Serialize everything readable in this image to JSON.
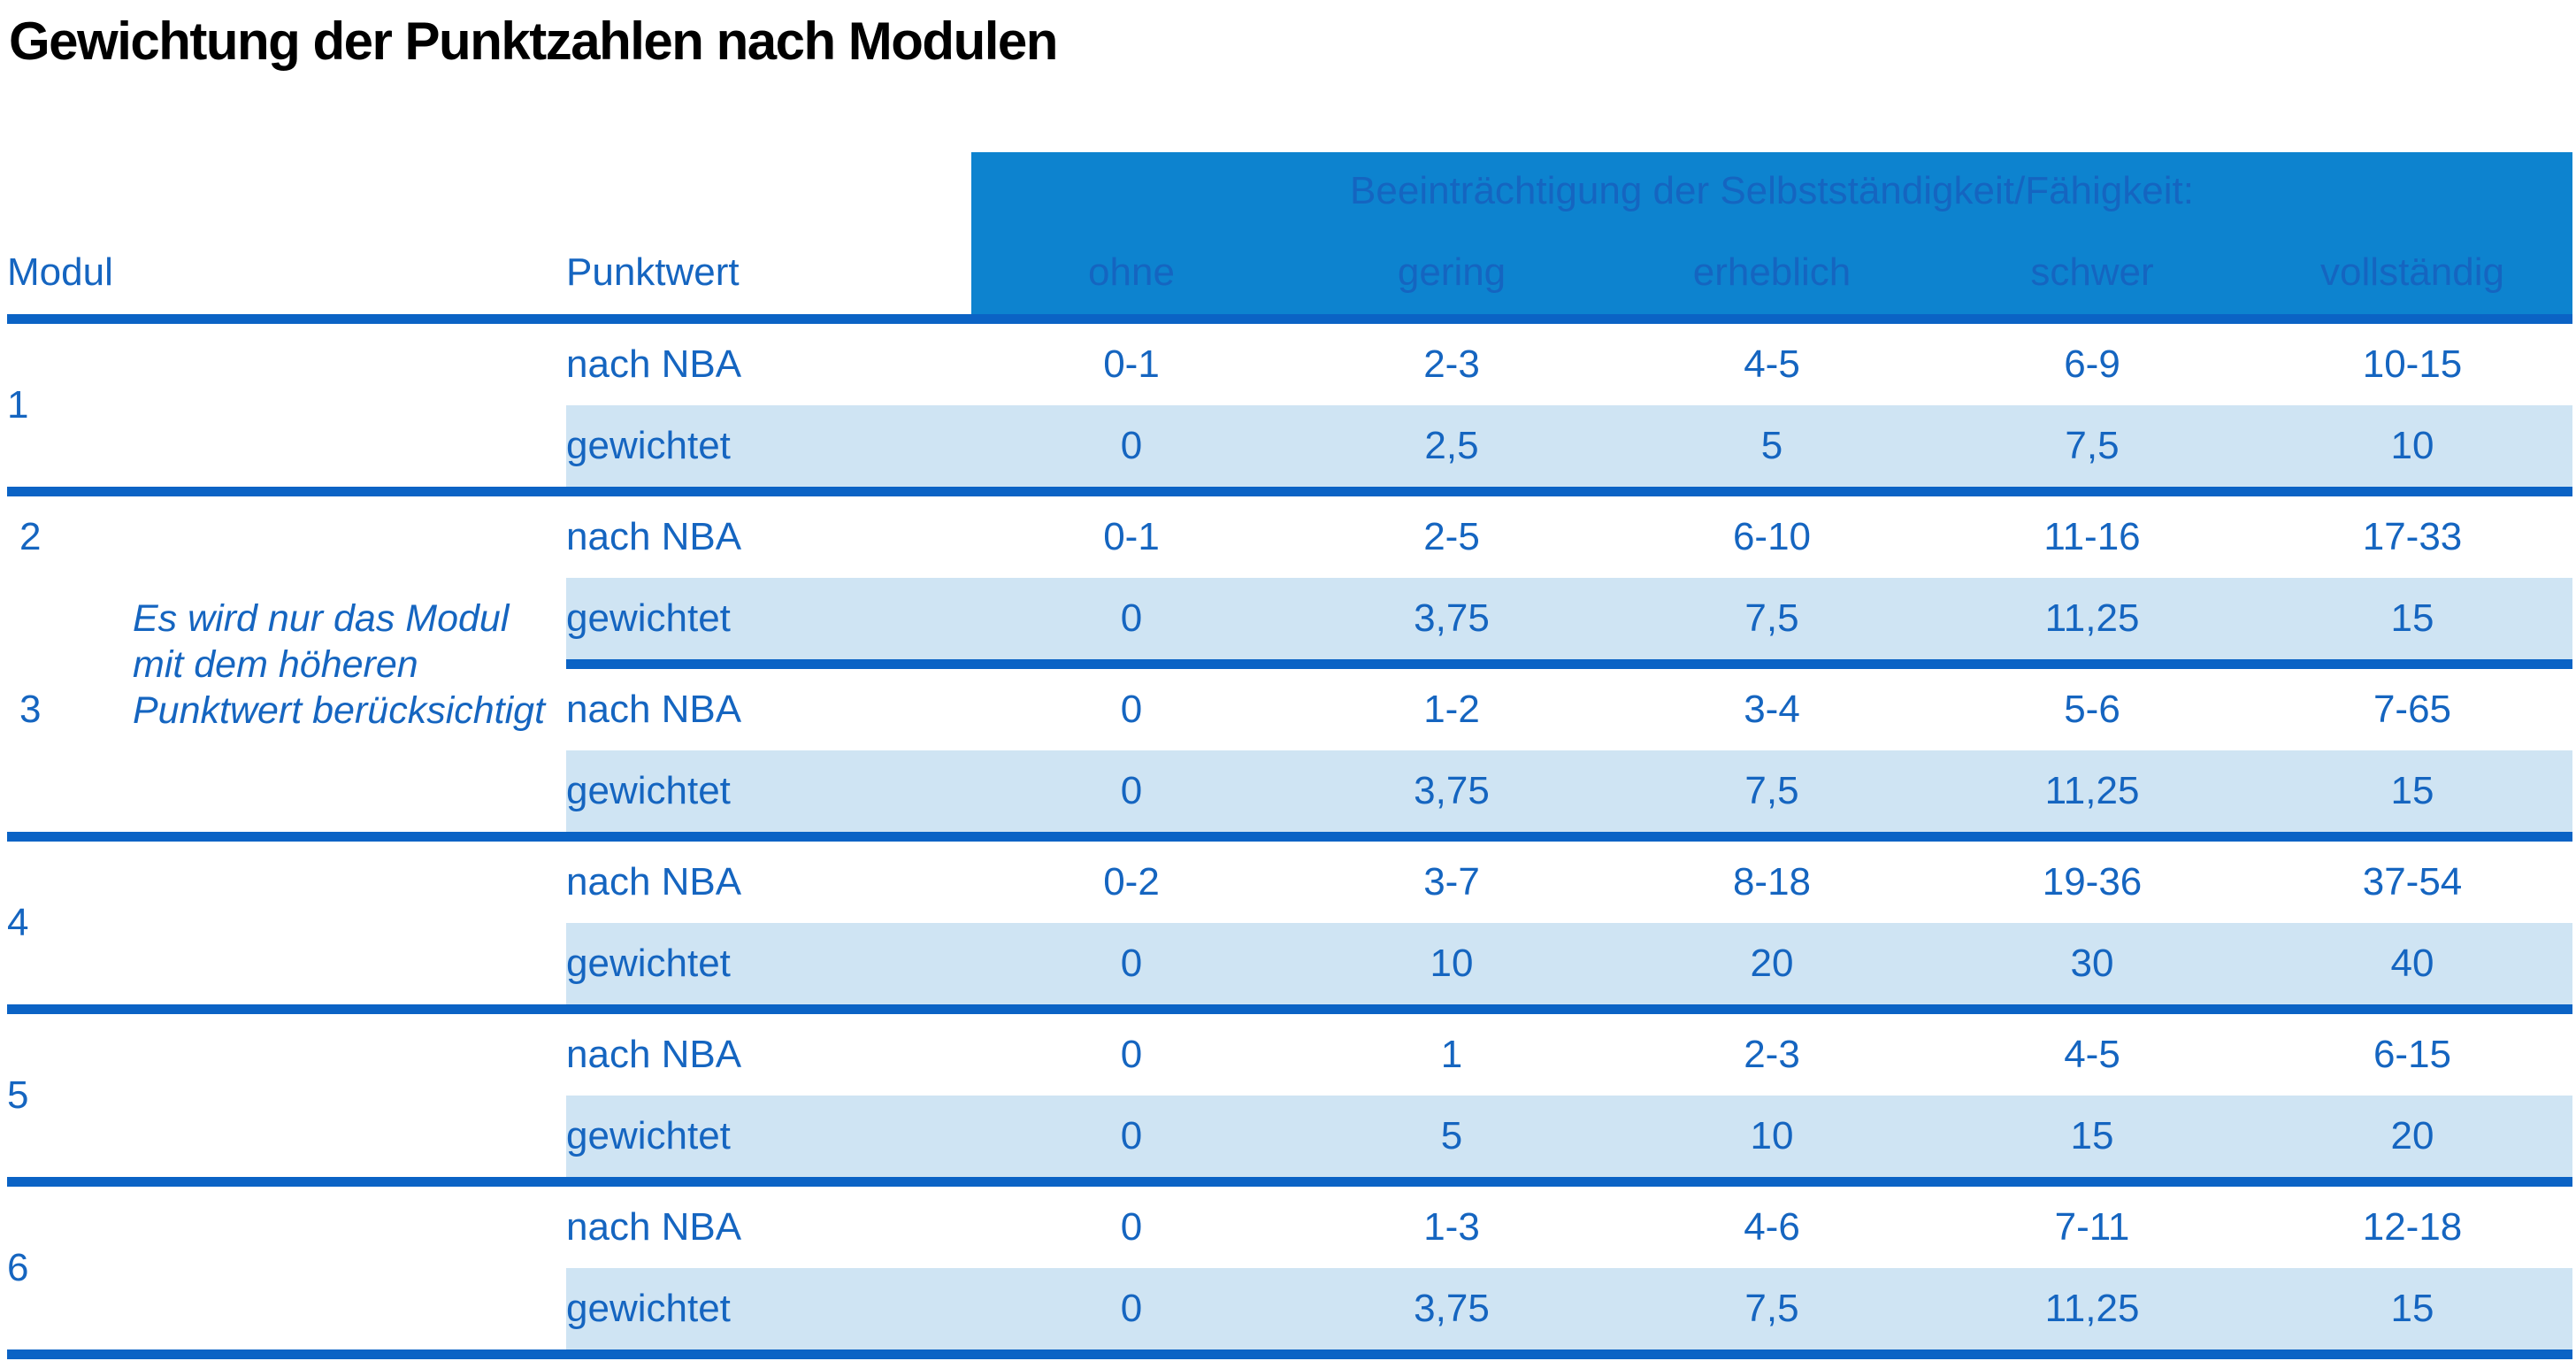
{
  "title": "Gewichtung der Punktzahlen nach Modulen",
  "colors": {
    "band_blue": "#0d83cf",
    "line_blue": "#0b63c5",
    "row_light": "#cfe4f3",
    "text_blue": "#1565c0",
    "title_black": "#000000",
    "page_bg": "#ffffff"
  },
  "table": {
    "group_header": "Beeinträchtigung der Selbstständigkeit/Fähigkeit:",
    "col_headers": {
      "modul": "Modul",
      "punktwert": "Punktwert",
      "levels": [
        "ohne",
        "gering",
        "erheblich",
        "schwer",
        "vollständig"
      ]
    },
    "row_labels": {
      "nba": "nach NBA",
      "weighted": "gewichtet"
    },
    "note_lines": [
      "Es wird nur das Modul",
      "mit dem höheren",
      "Punktwert berücksichtigt"
    ],
    "modules": [
      {
        "id": "1",
        "nba": [
          "0-1",
          "2-3",
          "4-5",
          "6-9",
          "10-15"
        ],
        "weighted": [
          "0",
          "2,5",
          "5",
          "7,5",
          "10"
        ]
      },
      {
        "id": "2",
        "nba": [
          "0-1",
          "2-5",
          "6-10",
          "11-16",
          "17-33"
        ],
        "weighted": [
          "0",
          "3,75",
          "7,5",
          "11,25",
          "15"
        ]
      },
      {
        "id": "3",
        "nba": [
          "0",
          "1-2",
          "3-4",
          "5-6",
          "7-65"
        ],
        "weighted": [
          "0",
          "3,75",
          "7,5",
          "11,25",
          "15"
        ]
      },
      {
        "id": "4",
        "nba": [
          "0-2",
          "3-7",
          "8-18",
          "19-36",
          "37-54"
        ],
        "weighted": [
          "0",
          "10",
          "20",
          "30",
          "40"
        ]
      },
      {
        "id": "5",
        "nba": [
          "0",
          "1",
          "2-3",
          "4-5",
          "6-15"
        ],
        "weighted": [
          "0",
          "5",
          "10",
          "15",
          "20"
        ]
      },
      {
        "id": "6",
        "nba": [
          "0",
          "1-3",
          "4-6",
          "7-11",
          "12-18"
        ],
        "weighted": [
          "0",
          "3,75",
          "7,5",
          "11,25",
          "15"
        ]
      }
    ]
  }
}
